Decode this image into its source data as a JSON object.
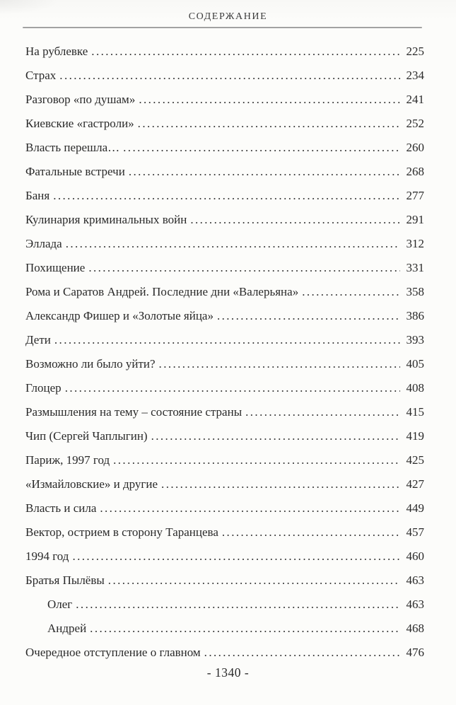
{
  "page": {
    "header_title": "СОДЕРЖАНИЕ",
    "footer_page_number": "- 1340 -"
  },
  "toc": {
    "entries": [
      {
        "title": "На рублевке",
        "page": "225",
        "indent": false
      },
      {
        "title": "Страх",
        "page": "234",
        "indent": false
      },
      {
        "title": "Разговор «по душам»",
        "page": "241",
        "indent": false
      },
      {
        "title": "Киевские «гастроли»",
        "page": "252",
        "indent": false
      },
      {
        "title": "Власть перешла…",
        "page": "260",
        "indent": false
      },
      {
        "title": "Фатальные встречи",
        "page": "268",
        "indent": false
      },
      {
        "title": "Баня",
        "page": "277",
        "indent": false
      },
      {
        "title": "Кулинария криминальных войн",
        "page": "291",
        "indent": false
      },
      {
        "title": "Эллада",
        "page": "312",
        "indent": false
      },
      {
        "title": "Похищение",
        "page": "331",
        "indent": false
      },
      {
        "title": "Рома и Саратов Андрей. Последние дни «Валерьяна»",
        "page": "358",
        "indent": false
      },
      {
        "title": "Александр Фишер и «Золотые яйца»",
        "page": "386",
        "indent": false
      },
      {
        "title": "Дети",
        "page": "393",
        "indent": false
      },
      {
        "title": "Возможно ли было уйти?",
        "page": "405",
        "indent": false
      },
      {
        "title": "Глоцер",
        "page": "408",
        "indent": false
      },
      {
        "title": "Размышления на тему – состояние страны",
        "page": "415",
        "indent": false
      },
      {
        "title": "Чип (Сергей Чаплыгин)",
        "page": "419",
        "indent": false
      },
      {
        "title": "Париж, 1997 год",
        "page": "425",
        "indent": false
      },
      {
        "title": "«Измайловские» и другие",
        "page": "427",
        "indent": false
      },
      {
        "title": "Власть и сила",
        "page": "449",
        "indent": false
      },
      {
        "title": "Вектор, острием в сторону Таранцева",
        "page": "457",
        "indent": false
      },
      {
        "title": "1994 год",
        "page": "460",
        "indent": false
      },
      {
        "title": "Братья Пылёвы",
        "page": "463",
        "indent": false
      },
      {
        "title": "Олег",
        "page": "463",
        "indent": true
      },
      {
        "title": "Андрей",
        "page": "468",
        "indent": true
      },
      {
        "title": "Очередное отступление о главном",
        "page": "476",
        "indent": false
      }
    ]
  },
  "colors": {
    "background": "#fcfcfa",
    "text": "#2a2a2a",
    "rule": "#8d8d8d"
  }
}
